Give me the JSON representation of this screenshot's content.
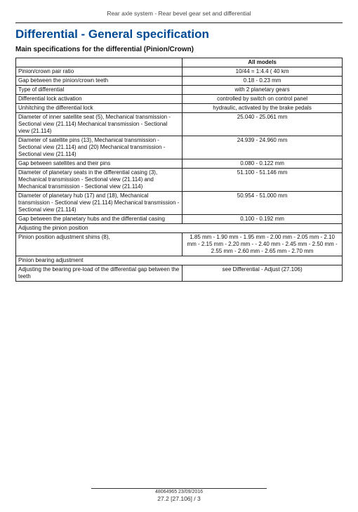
{
  "breadcrumb": "Rear axle system - Rear bevel gear set and differential",
  "title": "Differential - General specification",
  "subtitle": "Main specifications for the differential (Pinion/Crown)",
  "table": {
    "header_col2": "All models",
    "rows": [
      {
        "label": "Pinion/crown pair ratio",
        "value": "10/44 = 1:4.4 ( 40 km"
      },
      {
        "label": "Gap between the pinion/crown teeth",
        "value": "0.18 - 0.23 mm"
      },
      {
        "label": "Type of differential",
        "value": "with 2 planetary gears"
      },
      {
        "label": "Differential lock activation",
        "value": "controlled by switch on control panel"
      },
      {
        "label": "Unhitching the differential lock",
        "value": "hydraulic, activated by the brake pedals"
      },
      {
        "label": "Diameter of inner satellite seat (5), Mechanical transmission - Sectional view (21.114) Mechanical transmission - Sectional view (21.114)",
        "value": "25.040 - 25.061 mm"
      },
      {
        "label": "Diameter of satellite pins (13), Mechanical transmission - Sectional view (21.114) and (20) Mechanical transmission - Sectional view (21.114)",
        "value": "24.939 - 24.960 mm"
      },
      {
        "label": "Gap between satellites and their pins",
        "value": "0.080 - 0.122 mm"
      },
      {
        "label": "Diameter of planetary seats in the differential casing (3), Mechanical transmission - Sectional view (21.114) and Mechanical transmission - Sectional view (21.114)",
        "value": "51.100 - 51.146 mm"
      },
      {
        "label": "Diameter of planetary hub (17) and (18), Mechanical transmission - Sectional view (21.114) Mechanical transmission - Sectional view (21.114)",
        "value": "50.954 - 51.000 mm"
      },
      {
        "label": "Gap between the planetary hubs and the differential casing",
        "value": "0.100 - 0.192 mm"
      },
      {
        "label": "Adjusting the pinion position",
        "value": "",
        "span": true
      },
      {
        "label": "Pinion position adjustment shims (8),",
        "value": "1.85 mm - 1.90 mm - 1.95 mm - 2.00 mm - 2.05 mm - 2.10 mm - 2.15 mm - 2.20 mm - - 2.40 mm - 2.45 mm - 2.50 mm - 2.55 mm - 2.60 mm - 2.65 mm - 2.70 mm"
      },
      {
        "label": "Pinion bearing adjustment",
        "value": "",
        "span": true
      },
      {
        "label": "Adjusting the bearing pre-load of the differential gap between the teeth",
        "value": "see Differential - Adjust (27.106)"
      }
    ]
  },
  "footer": {
    "meta": "48064965 23/09/2016",
    "page": "27.2 [27.106] / 3"
  }
}
